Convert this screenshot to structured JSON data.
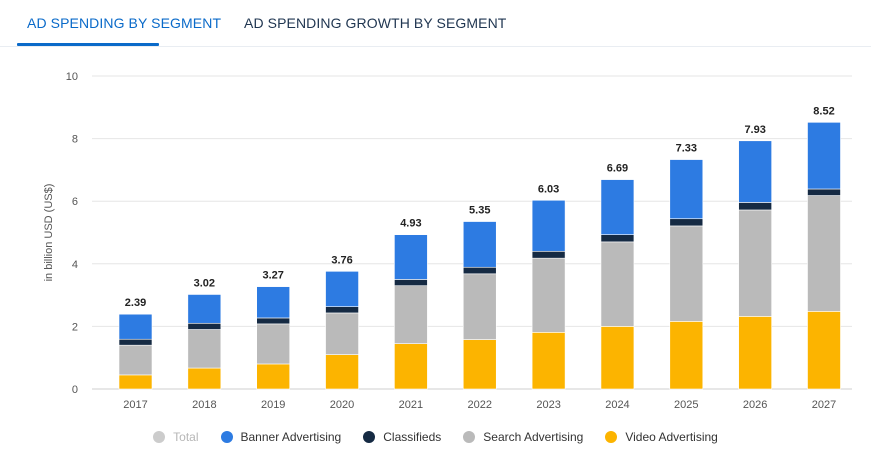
{
  "tabs": {
    "active_label": "AD SPENDING BY SEGMENT",
    "other_label": "AD SPENDING GROWTH BY SEGMENT"
  },
  "colors": {
    "accent": "#0a6ac9",
    "banner": "#2d7be2",
    "classifieds": "#152a43",
    "search": "#bababa",
    "video": "#fcb400",
    "total_legend": "#cccccc"
  },
  "chart_data": {
    "type": "bar",
    "stacked": true,
    "ylabel": "in billion USD (US$)",
    "ylim": [
      0,
      10
    ],
    "yticks": [
      0,
      2,
      4,
      6,
      8,
      10
    ],
    "grid": true,
    "legend_position": "bottom",
    "categories": [
      "2017",
      "2018",
      "2019",
      "2020",
      "2021",
      "2022",
      "2023",
      "2024",
      "2025",
      "2026",
      "2027"
    ],
    "totals": [
      2.39,
      3.02,
      3.27,
      3.76,
      4.93,
      5.35,
      6.03,
      6.69,
      7.33,
      7.93,
      8.52
    ],
    "total_labels": [
      "2.39",
      "3.02",
      "3.27",
      "3.76",
      "4.93",
      "5.35",
      "6.03",
      "6.69",
      "7.33",
      "7.93",
      "8.52"
    ],
    "series": [
      {
        "name": "Video Advertising",
        "values": [
          0.45,
          0.67,
          0.8,
          1.1,
          1.45,
          1.58,
          1.81,
          2.0,
          2.16,
          2.32,
          2.48
        ]
      },
      {
        "name": "Search Advertising",
        "values": [
          0.95,
          1.23,
          1.28,
          1.33,
          1.85,
          2.1,
          2.37,
          2.7,
          3.05,
          3.4,
          3.7
        ]
      },
      {
        "name": "Classifieds",
        "values": [
          0.19,
          0.2,
          0.19,
          0.2,
          0.2,
          0.21,
          0.22,
          0.23,
          0.23,
          0.24,
          0.21
        ]
      },
      {
        "name": "Banner Advertising",
        "values": [
          0.8,
          0.92,
          1.0,
          1.13,
          1.43,
          1.46,
          1.63,
          1.76,
          1.89,
          1.97,
          2.13
        ]
      }
    ],
    "legend": [
      {
        "name": "Total",
        "disabled": true
      },
      {
        "name": "Banner Advertising"
      },
      {
        "name": "Classifieds"
      },
      {
        "name": "Search Advertising"
      },
      {
        "name": "Video Advertising"
      }
    ]
  }
}
